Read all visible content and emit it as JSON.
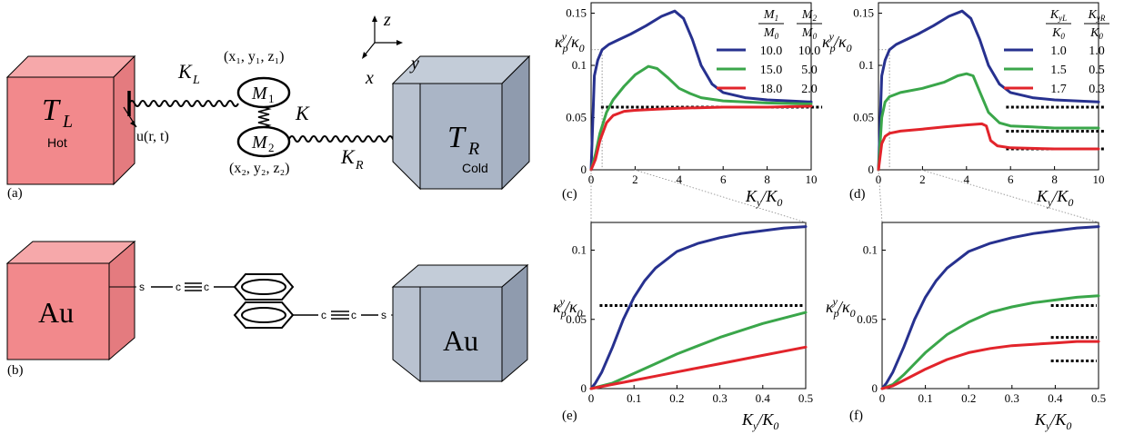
{
  "figure": {
    "panels": {
      "a": {
        "tag": "(a)",
        "hot_reservoir": {
          "symbol": "T",
          "sub": "L",
          "caption": "Hot"
        },
        "cold_reservoir": {
          "symbol": "T",
          "sub": "R",
          "caption": "Cold"
        },
        "displacement": "u(r, t)",
        "left_spring": {
          "symbol": "K",
          "sub": "L"
        },
        "right_spring": {
          "symbol": "K",
          "sub": "R"
        },
        "middle_spring": "K",
        "mass1": {
          "symbol": "M",
          "sub": "1",
          "coords": "(x₁,  y₁,  z₁)"
        },
        "mass2": {
          "symbol": "M",
          "sub": "2",
          "coords": "(x₂,  y₂,  z₂)"
        },
        "axes": {
          "z": "z",
          "x": "x",
          "y": "y"
        }
      },
      "b": {
        "tag": "(b)",
        "left_block": "Au",
        "right_block": "Au",
        "atoms": {
          "s": "s",
          "c": "c"
        }
      },
      "c": {
        "tag": "(c)"
      },
      "d": {
        "tag": "(d)"
      },
      "e": {
        "tag": "(e)"
      },
      "f": {
        "tag": "(f)"
      }
    },
    "axis_text": {
      "ylabel": "κ_p^y / κ_0",
      "xlabel": "K_y / K_0"
    },
    "legend_c": {
      "headers": [
        "M_1/M_0",
        "M_2/M_0"
      ],
      "rows": [
        [
          "10.0",
          "10.0"
        ],
        [
          "15.0",
          "5.0"
        ],
        [
          "18.0",
          "2.0"
        ]
      ]
    },
    "legend_d": {
      "headers": [
        "K_yL/K_0",
        "K_yR/K_0"
      ],
      "rows": [
        [
          "1.0",
          "1.0"
        ],
        [
          "1.5",
          "0.5"
        ],
        [
          "1.7",
          "0.3"
        ]
      ]
    }
  },
  "colors": {
    "blue": "#27318f",
    "green": "#3aa64a",
    "red": "#e2242b",
    "hot": "#f2898c",
    "cold": "#aab5c6"
  },
  "chart_data": [
    {
      "panel": "c",
      "type": "line",
      "xlim": [
        0,
        10
      ],
      "ylim": [
        0,
        0.16
      ],
      "xticks": [
        0,
        2,
        4,
        6,
        8,
        10
      ],
      "yticks": [
        0,
        0.05,
        0.1,
        0.15
      ],
      "series": [
        {
          "name": "10.0 / 10.0",
          "color": "blue",
          "x": [
            0,
            0.15,
            0.3,
            0.5,
            0.8,
            1.2,
            1.8,
            2.5,
            3.2,
            3.8,
            4.2,
            4.6,
            5.0,
            5.5,
            6.0,
            7.0,
            8.0,
            9.0,
            10.0
          ],
          "y": [
            0,
            0.09,
            0.105,
            0.115,
            0.12,
            0.124,
            0.13,
            0.138,
            0.147,
            0.152,
            0.145,
            0.125,
            0.1,
            0.082,
            0.074,
            0.069,
            0.067,
            0.066,
            0.065
          ]
        },
        {
          "name": "15.0 / 5.0",
          "color": "green",
          "x": [
            0,
            0.2,
            0.4,
            0.7,
            1.0,
            1.5,
            2.0,
            2.6,
            3.0,
            3.5,
            4.0,
            4.5,
            5.0,
            6.0,
            7.0,
            8.0,
            10.0
          ],
          "y": [
            0,
            0.015,
            0.035,
            0.055,
            0.067,
            0.08,
            0.091,
            0.099,
            0.097,
            0.088,
            0.078,
            0.073,
            0.069,
            0.066,
            0.065,
            0.064,
            0.063
          ]
        },
        {
          "name": "18.0 / 2.0",
          "color": "red",
          "x": [
            0,
            0.2,
            0.4,
            0.7,
            1.0,
            1.5,
            2.0,
            3.0,
            4.0,
            6.0,
            8.0,
            10.0
          ],
          "y": [
            0,
            0.01,
            0.028,
            0.045,
            0.052,
            0.056,
            0.057,
            0.058,
            0.059,
            0.06,
            0.06,
            0.061
          ]
        }
      ],
      "reference_lines": [
        0.06
      ]
    },
    {
      "panel": "d",
      "type": "line",
      "xlim": [
        0,
        10
      ],
      "ylim": [
        0,
        0.16
      ],
      "xticks": [
        0,
        2,
        4,
        6,
        8,
        10
      ],
      "yticks": [
        0,
        0.05,
        0.1,
        0.15
      ],
      "series": [
        {
          "name": "1.0 / 1.0",
          "color": "blue",
          "x": [
            0,
            0.15,
            0.3,
            0.5,
            0.8,
            1.2,
            1.8,
            2.5,
            3.2,
            3.8,
            4.2,
            4.6,
            5.0,
            5.5,
            6.0,
            7.0,
            8.0,
            9.0,
            10.0
          ],
          "y": [
            0,
            0.09,
            0.105,
            0.115,
            0.12,
            0.124,
            0.13,
            0.138,
            0.147,
            0.152,
            0.145,
            0.125,
            0.1,
            0.082,
            0.074,
            0.069,
            0.067,
            0.066,
            0.065
          ]
        },
        {
          "name": "1.5 / 0.5",
          "color": "green",
          "x": [
            0,
            0.15,
            0.3,
            0.5,
            1.0,
            2.0,
            3.0,
            3.6,
            4.0,
            4.3,
            4.6,
            5.0,
            5.5,
            6.0,
            7.0,
            8.0,
            10.0
          ],
          "y": [
            0,
            0.05,
            0.065,
            0.07,
            0.074,
            0.078,
            0.084,
            0.09,
            0.092,
            0.09,
            0.075,
            0.055,
            0.045,
            0.042,
            0.041,
            0.04,
            0.04
          ]
        },
        {
          "name": "1.7 / 0.3",
          "color": "red",
          "x": [
            0,
            0.15,
            0.3,
            0.5,
            1.0,
            2.0,
            3.0,
            4.0,
            4.7,
            4.9,
            5.1,
            5.4,
            6.0,
            8.0,
            10.0
          ],
          "y": [
            0,
            0.025,
            0.032,
            0.035,
            0.037,
            0.039,
            0.041,
            0.043,
            0.044,
            0.042,
            0.028,
            0.023,
            0.021,
            0.02,
            0.02
          ]
        }
      ],
      "reference_lines": [
        0.06,
        0.037,
        0.02
      ]
    },
    {
      "panel": "e",
      "type": "line",
      "xlim": [
        0,
        0.5
      ],
      "ylim": [
        0,
        0.12
      ],
      "xticks": [
        0,
        0.1,
        0.2,
        0.3,
        0.4,
        0.5
      ],
      "yticks": [
        0,
        0.05,
        0.1
      ],
      "series": [
        {
          "name": "10.0 / 10.0",
          "color": "blue",
          "x": [
            0,
            0.01,
            0.025,
            0.05,
            0.075,
            0.1,
            0.125,
            0.15,
            0.2,
            0.25,
            0.3,
            0.35,
            0.4,
            0.45,
            0.5
          ],
          "y": [
            0,
            0.004,
            0.012,
            0.03,
            0.05,
            0.066,
            0.078,
            0.087,
            0.099,
            0.105,
            0.109,
            0.112,
            0.114,
            0.116,
            0.117
          ]
        },
        {
          "name": "15.0 / 5.0",
          "color": "green",
          "x": [
            0,
            0.05,
            0.1,
            0.15,
            0.2,
            0.25,
            0.3,
            0.35,
            0.4,
            0.45,
            0.5
          ],
          "y": [
            0,
            0.004,
            0.011,
            0.018,
            0.025,
            0.031,
            0.037,
            0.042,
            0.047,
            0.051,
            0.055
          ]
        },
        {
          "name": "18.0 / 2.0",
          "color": "red",
          "x": [
            0,
            0.05,
            0.1,
            0.15,
            0.2,
            0.25,
            0.3,
            0.35,
            0.4,
            0.45,
            0.5
          ],
          "y": [
            0,
            0.003,
            0.006,
            0.009,
            0.012,
            0.015,
            0.018,
            0.021,
            0.024,
            0.027,
            0.03
          ]
        }
      ],
      "reference_lines": [
        0.06
      ]
    },
    {
      "panel": "f",
      "type": "line",
      "xlim": [
        0,
        0.5
      ],
      "ylim": [
        0,
        0.12
      ],
      "xticks": [
        0,
        0.1,
        0.2,
        0.3,
        0.4,
        0.5
      ],
      "yticks": [
        0,
        0.05,
        0.1
      ],
      "series": [
        {
          "name": "1.0 / 1.0",
          "color": "blue",
          "x": [
            0,
            0.01,
            0.025,
            0.05,
            0.075,
            0.1,
            0.125,
            0.15,
            0.2,
            0.25,
            0.3,
            0.35,
            0.4,
            0.45,
            0.5
          ],
          "y": [
            0,
            0.004,
            0.012,
            0.03,
            0.05,
            0.066,
            0.078,
            0.087,
            0.099,
            0.105,
            0.109,
            0.112,
            0.114,
            0.116,
            0.117
          ]
        },
        {
          "name": "1.5 / 0.5",
          "color": "green",
          "x": [
            0,
            0.025,
            0.05,
            0.1,
            0.15,
            0.2,
            0.25,
            0.3,
            0.35,
            0.4,
            0.45,
            0.5
          ],
          "y": [
            0,
            0.003,
            0.01,
            0.026,
            0.039,
            0.048,
            0.055,
            0.059,
            0.062,
            0.064,
            0.066,
            0.067
          ]
        },
        {
          "name": "1.7 / 0.3",
          "color": "red",
          "x": [
            0,
            0.025,
            0.05,
            0.1,
            0.15,
            0.2,
            0.25,
            0.3,
            0.35,
            0.4,
            0.45,
            0.5
          ],
          "y": [
            0,
            0.002,
            0.006,
            0.014,
            0.021,
            0.026,
            0.029,
            0.031,
            0.032,
            0.033,
            0.034,
            0.034
          ]
        }
      ],
      "reference_lines": [
        0.06,
        0.037,
        0.02
      ]
    }
  ]
}
